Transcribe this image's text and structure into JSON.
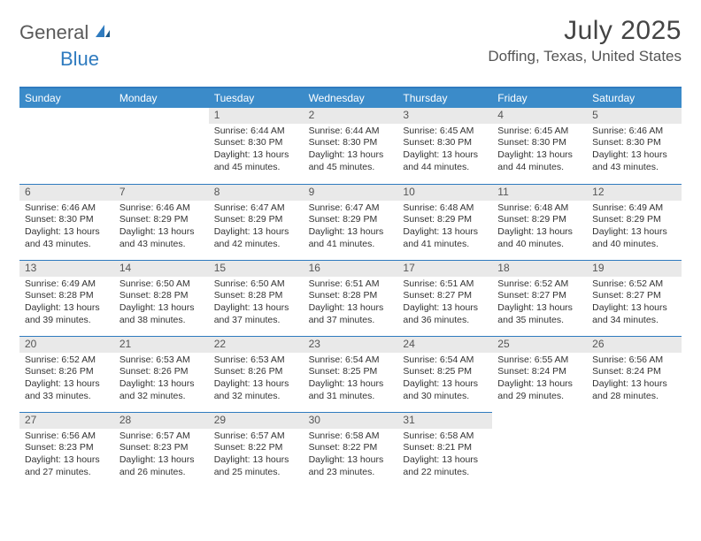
{
  "logo": {
    "text1": "General",
    "text2": "Blue"
  },
  "title": "July 2025",
  "location": "Doffing, Texas, United States",
  "colors": {
    "header_bg": "#3b8bc9",
    "accent": "#2f7bbf",
    "daynum_bg": "#e9e9e9",
    "text": "#333333"
  },
  "day_headers": [
    "Sunday",
    "Monday",
    "Tuesday",
    "Wednesday",
    "Thursday",
    "Friday",
    "Saturday"
  ],
  "weeks": [
    [
      null,
      null,
      {
        "n": "1",
        "sr": "6:44 AM",
        "ss": "8:30 PM",
        "dl": "13 hours and 45 minutes."
      },
      {
        "n": "2",
        "sr": "6:44 AM",
        "ss": "8:30 PM",
        "dl": "13 hours and 45 minutes."
      },
      {
        "n": "3",
        "sr": "6:45 AM",
        "ss": "8:30 PM",
        "dl": "13 hours and 44 minutes."
      },
      {
        "n": "4",
        "sr": "6:45 AM",
        "ss": "8:30 PM",
        "dl": "13 hours and 44 minutes."
      },
      {
        "n": "5",
        "sr": "6:46 AM",
        "ss": "8:30 PM",
        "dl": "13 hours and 43 minutes."
      }
    ],
    [
      {
        "n": "6",
        "sr": "6:46 AM",
        "ss": "8:30 PM",
        "dl": "13 hours and 43 minutes."
      },
      {
        "n": "7",
        "sr": "6:46 AM",
        "ss": "8:29 PM",
        "dl": "13 hours and 43 minutes."
      },
      {
        "n": "8",
        "sr": "6:47 AM",
        "ss": "8:29 PM",
        "dl": "13 hours and 42 minutes."
      },
      {
        "n": "9",
        "sr": "6:47 AM",
        "ss": "8:29 PM",
        "dl": "13 hours and 41 minutes."
      },
      {
        "n": "10",
        "sr": "6:48 AM",
        "ss": "8:29 PM",
        "dl": "13 hours and 41 minutes."
      },
      {
        "n": "11",
        "sr": "6:48 AM",
        "ss": "8:29 PM",
        "dl": "13 hours and 40 minutes."
      },
      {
        "n": "12",
        "sr": "6:49 AM",
        "ss": "8:29 PM",
        "dl": "13 hours and 40 minutes."
      }
    ],
    [
      {
        "n": "13",
        "sr": "6:49 AM",
        "ss": "8:28 PM",
        "dl": "13 hours and 39 minutes."
      },
      {
        "n": "14",
        "sr": "6:50 AM",
        "ss": "8:28 PM",
        "dl": "13 hours and 38 minutes."
      },
      {
        "n": "15",
        "sr": "6:50 AM",
        "ss": "8:28 PM",
        "dl": "13 hours and 37 minutes."
      },
      {
        "n": "16",
        "sr": "6:51 AM",
        "ss": "8:28 PM",
        "dl": "13 hours and 37 minutes."
      },
      {
        "n": "17",
        "sr": "6:51 AM",
        "ss": "8:27 PM",
        "dl": "13 hours and 36 minutes."
      },
      {
        "n": "18",
        "sr": "6:52 AM",
        "ss": "8:27 PM",
        "dl": "13 hours and 35 minutes."
      },
      {
        "n": "19",
        "sr": "6:52 AM",
        "ss": "8:27 PM",
        "dl": "13 hours and 34 minutes."
      }
    ],
    [
      {
        "n": "20",
        "sr": "6:52 AM",
        "ss": "8:26 PM",
        "dl": "13 hours and 33 minutes."
      },
      {
        "n": "21",
        "sr": "6:53 AM",
        "ss": "8:26 PM",
        "dl": "13 hours and 32 minutes."
      },
      {
        "n": "22",
        "sr": "6:53 AM",
        "ss": "8:26 PM",
        "dl": "13 hours and 32 minutes."
      },
      {
        "n": "23",
        "sr": "6:54 AM",
        "ss": "8:25 PM",
        "dl": "13 hours and 31 minutes."
      },
      {
        "n": "24",
        "sr": "6:54 AM",
        "ss": "8:25 PM",
        "dl": "13 hours and 30 minutes."
      },
      {
        "n": "25",
        "sr": "6:55 AM",
        "ss": "8:24 PM",
        "dl": "13 hours and 29 minutes."
      },
      {
        "n": "26",
        "sr": "6:56 AM",
        "ss": "8:24 PM",
        "dl": "13 hours and 28 minutes."
      }
    ],
    [
      {
        "n": "27",
        "sr": "6:56 AM",
        "ss": "8:23 PM",
        "dl": "13 hours and 27 minutes."
      },
      {
        "n": "28",
        "sr": "6:57 AM",
        "ss": "8:23 PM",
        "dl": "13 hours and 26 minutes."
      },
      {
        "n": "29",
        "sr": "6:57 AM",
        "ss": "8:22 PM",
        "dl": "13 hours and 25 minutes."
      },
      {
        "n": "30",
        "sr": "6:58 AM",
        "ss": "8:22 PM",
        "dl": "13 hours and 23 minutes."
      },
      {
        "n": "31",
        "sr": "6:58 AM",
        "ss": "8:21 PM",
        "dl": "13 hours and 22 minutes."
      },
      null,
      null
    ]
  ],
  "labels": {
    "sunrise": "Sunrise:",
    "sunset": "Sunset:",
    "daylight": "Daylight:"
  }
}
